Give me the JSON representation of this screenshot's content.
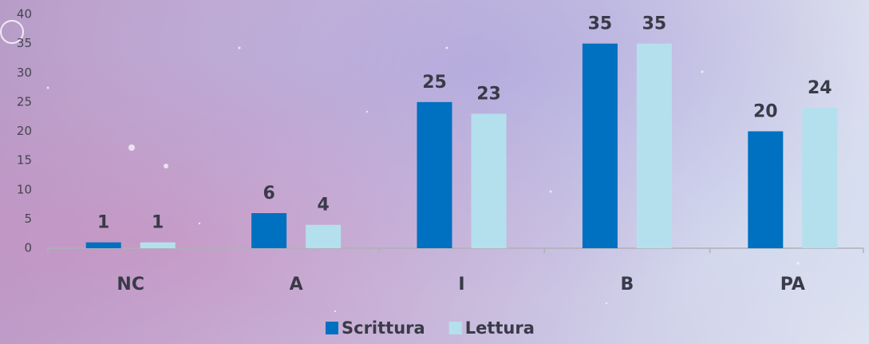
{
  "chart_data": {
    "type": "bar",
    "categories": [
      "NC",
      "A",
      "I",
      "B",
      "PA"
    ],
    "series": [
      {
        "name": "Scrittura",
        "color": "#0070c0",
        "values": [
          1,
          6,
          25,
          35,
          20
        ]
      },
      {
        "name": "Lettura",
        "color": "#b4e0ee",
        "values": [
          1,
          4,
          23,
          35,
          24
        ]
      }
    ],
    "ylim": [
      0,
      40
    ],
    "yticks": [
      0,
      5,
      10,
      15,
      20,
      25,
      30,
      35,
      40
    ],
    "grid": false,
    "legend": "bottom"
  }
}
